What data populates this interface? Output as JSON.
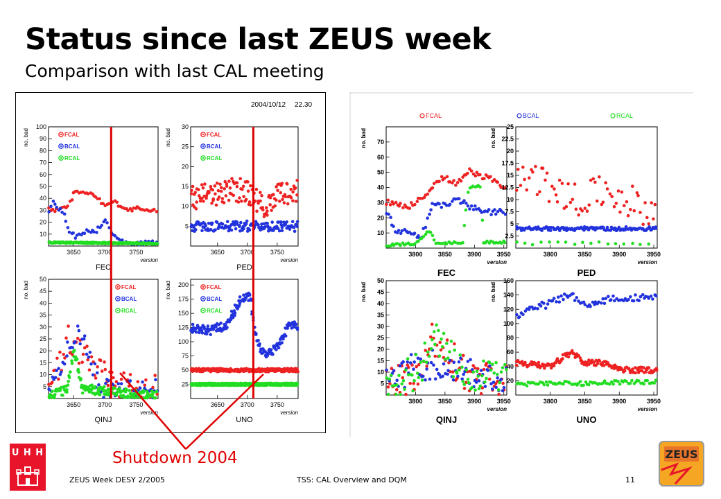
{
  "slide": {
    "title": "Status since last ZEUS week",
    "subtitle": "Comparison with last CAL meeting",
    "annotation": "Shutdown 2004",
    "annotation_color": "#e00000",
    "footer_left": "ZEUS Week DESY 2/2005",
    "footer_center": "TSS: CAL Overview and DQM",
    "page_number": "11",
    "logo_left_text": "U H H",
    "logo_right_text": "ZEUS"
  },
  "left_figure": {
    "timestamp": "2004/10/12",
    "time": "22.30",
    "shutdown_version": 3710
  },
  "chart_data": [
    {
      "panel": "left-FEC",
      "type": "scatter",
      "title": "FEC",
      "xlabel": "version",
      "ylabel": "no. bad",
      "xlim": [
        3610,
        3785
      ],
      "ylim": [
        0,
        100
      ],
      "xticks": [
        3650,
        3700,
        3750
      ],
      "yticks": [
        10,
        20,
        30,
        40,
        50,
        60,
        70,
        80,
        90,
        100
      ],
      "legend": [
        "FCAL",
        "BCAL",
        "RCAL"
      ],
      "series": [
        {
          "name": "FCAL",
          "color": "#ee2222",
          "profile": [
            [
              3610,
              31
            ],
            [
              3622,
              30
            ],
            [
              3640,
              32
            ],
            [
              3652,
              46
            ],
            [
              3670,
              45
            ],
            [
              3690,
              40
            ],
            [
              3700,
              33
            ],
            [
              3715,
              37
            ],
            [
              3725,
              33
            ],
            [
              3740,
              30
            ],
            [
              3752,
              32
            ],
            [
              3768,
              30
            ],
            [
              3785,
              29
            ]
          ],
          "jitter": 1.5,
          "spread": 1,
          "dx": 3
        },
        {
          "name": "BCAL",
          "color": "#2233dd",
          "profile": [
            [
              3610,
              26
            ],
            [
              3618,
              38
            ],
            [
              3625,
              32
            ],
            [
              3635,
              27
            ],
            [
              3645,
              10
            ],
            [
              3655,
              8
            ],
            [
              3665,
              12
            ],
            [
              3685,
              12
            ],
            [
              3700,
              23
            ],
            [
              3710,
              12
            ],
            [
              3730,
              3
            ],
            [
              3760,
              3
            ],
            [
              3785,
              3
            ]
          ],
          "jitter": 2,
          "spread": 1,
          "dx": 3
        },
        {
          "name": "RCAL",
          "color": "#22dd22",
          "profile": [
            [
              3610,
              3
            ],
            [
              3785,
              2
            ]
          ],
          "jitter": 0.6,
          "spread": 2,
          "dx": 1.5
        }
      ]
    },
    {
      "panel": "left-PED",
      "type": "scatter",
      "title": "PED",
      "xlabel": "version",
      "ylabel": "no. bad",
      "xlim": [
        3605,
        3785
      ],
      "ylim": [
        0,
        30
      ],
      "xticks": [
        3650,
        3700,
        3750
      ],
      "yticks": [
        5,
        10,
        15,
        20,
        25,
        30
      ],
      "legend": [
        "FCAL",
        "BCAL",
        "RCAL"
      ],
      "series": [
        {
          "name": "FCAL",
          "color": "#ee2222",
          "profile": [
            [
              3605,
              12
            ],
            [
              3640,
              13
            ],
            [
              3670,
              14
            ],
            [
              3700,
              14
            ],
            [
              3712,
              12
            ],
            [
              3730,
              10
            ],
            [
              3750,
              13
            ],
            [
              3785,
              14
            ]
          ],
          "jitter": 3,
          "spread": 2,
          "dx": 2.5
        },
        {
          "name": "BCAL",
          "color": "#2233dd",
          "profile": [
            [
              3605,
              5
            ],
            [
              3785,
              5
            ]
          ],
          "jitter": 1.3,
          "spread": 2,
          "dx": 2.5
        },
        {
          "name": "RCAL",
          "color": "#22dd22",
          "profile": [],
          "jitter": 0,
          "spread": 1,
          "dx": 3
        }
      ]
    },
    {
      "panel": "left-QINJ",
      "type": "scatter",
      "title": "QINJ",
      "xlabel": "version",
      "ylabel": "no. bad",
      "xlim": [
        3610,
        3785
      ],
      "ylim": [
        0,
        50
      ],
      "xticks": [
        3650,
        3700,
        3750
      ],
      "yticks": [
        5,
        10,
        15,
        20,
        25,
        30,
        35,
        40,
        45,
        50
      ],
      "legend": [
        "FCAL",
        "BCAL",
        "RCAL"
      ],
      "series": [
        {
          "name": "FCAL",
          "color": "#ee2222",
          "profile": [
            [
              3610,
              5
            ],
            [
              3625,
              12
            ],
            [
              3640,
              25
            ],
            [
              3655,
              20
            ],
            [
              3675,
              15
            ],
            [
              3695,
              10
            ],
            [
              3720,
              6
            ],
            [
              3750,
              5
            ],
            [
              3785,
              4
            ]
          ],
          "jitter": 6,
          "spread": 1,
          "dx": 2.5
        },
        {
          "name": "BCAL",
          "color": "#2233dd",
          "profile": [
            [
              3610,
              4
            ],
            [
              3625,
              8
            ],
            [
              3645,
              25
            ],
            [
              3665,
              27
            ],
            [
              3680,
              12
            ],
            [
              3700,
              4
            ],
            [
              3740,
              4
            ],
            [
              3785,
              3
            ]
          ],
          "jitter": 5,
          "spread": 1,
          "dx": 2.5
        },
        {
          "name": "RCAL",
          "color": "#22dd22",
          "profile": [
            [
              3610,
              1
            ],
            [
              3640,
              4
            ],
            [
              3650,
              20
            ],
            [
              3665,
              4
            ],
            [
              3785,
              1
            ]
          ],
          "jitter": 2,
          "spread": 2,
          "dx": 2
        }
      ]
    },
    {
      "panel": "left-UNO",
      "type": "scatter",
      "title": "UNO",
      "xlabel": "version",
      "ylabel": "no. bad",
      "xlim": [
        3605,
        3785
      ],
      "ylim": [
        0,
        210
      ],
      "xticks": [
        3650,
        3700,
        3750
      ],
      "yticks": [
        25,
        50,
        75,
        100,
        125,
        150,
        175,
        200
      ],
      "legend": [
        "FCAL",
        "BCAL",
        "RCAL"
      ],
      "series": [
        {
          "name": "FCAL",
          "color": "#ee2222",
          "profile": [
            [
              3605,
              50
            ],
            [
              3785,
              50
            ]
          ],
          "jitter": 3,
          "spread": 3,
          "dx": 2
        },
        {
          "name": "BCAL",
          "color": "#2233dd",
          "profile": [
            [
              3605,
              125
            ],
            [
              3640,
              120
            ],
            [
              3665,
              130
            ],
            [
              3690,
              175
            ],
            [
              3705,
              180
            ],
            [
              3715,
              100
            ],
            [
              3730,
              75
            ],
            [
              3750,
              90
            ],
            [
              3770,
              130
            ],
            [
              3785,
              125
            ]
          ],
          "jitter": 8,
          "spread": 2,
          "dx": 2
        },
        {
          "name": "RCAL",
          "color": "#22dd22",
          "profile": [
            [
              3605,
              25
            ],
            [
              3785,
              25
            ]
          ],
          "jitter": 2,
          "spread": 4,
          "dx": 1.5
        }
      ]
    },
    {
      "panel": "right-FEC",
      "type": "scatter",
      "title": "FEC",
      "xlabel": "version",
      "ylabel": "no. bad",
      "xlim": [
        3750,
        3955
      ],
      "ylim": [
        0,
        80
      ],
      "xticks": [
        3800,
        3850,
        3900,
        3950
      ],
      "yticks": [
        10,
        20,
        30,
        40,
        50,
        60,
        70
      ],
      "legend": [
        "FCAL",
        "BCAL",
        "RCAL"
      ],
      "series": [
        {
          "name": "FCAL",
          "color": "#ee2222",
          "profile": [
            [
              3750,
              30
            ],
            [
              3790,
              28
            ],
            [
              3810,
              33
            ],
            [
              3830,
              40
            ],
            [
              3845,
              47
            ],
            [
              3870,
              43
            ],
            [
              3890,
              51
            ],
            [
              3910,
              48
            ],
            [
              3930,
              45
            ],
            [
              3955,
              40
            ]
          ],
          "jitter": 2,
          "spread": 1,
          "dx": 3
        },
        {
          "name": "BCAL",
          "color": "#2233dd",
          "profile": [
            [
              3750,
              25
            ],
            [
              3765,
              12
            ],
            [
              3790,
              10
            ],
            [
              3810,
              7
            ],
            [
              3830,
              30
            ],
            [
              3850,
              28
            ],
            [
              3870,
              33
            ],
            [
              3890,
              28
            ],
            [
              3910,
              24
            ],
            [
              3955,
              24
            ]
          ],
          "jitter": 2,
          "spread": 1,
          "dx": 3
        },
        {
          "name": "RCAL",
          "color": "#22dd22",
          "profile": [
            [
              3750,
              2
            ],
            [
              3800,
              3
            ],
            [
              3825,
              12
            ],
            [
              3835,
              3
            ],
            [
              3880,
              4
            ],
            [
              3890,
              40
            ],
            [
              3910,
              41
            ],
            [
              3915,
              4
            ],
            [
              3955,
              4
            ]
          ],
          "jitter": 0.8,
          "spread": 1,
          "dx": 3
        }
      ]
    },
    {
      "panel": "right-PED",
      "type": "scatter",
      "title": "PED",
      "xlabel": "version",
      "ylabel": "no. bad",
      "xlim": [
        3750,
        3955
      ],
      "ylim": [
        0,
        25
      ],
      "xticks": [
        3800,
        3850,
        3900,
        3950
      ],
      "yticks": [
        2.5,
        5,
        7.5,
        10,
        12.5,
        15,
        17.5,
        20,
        22.5,
        25
      ],
      "legend": [
        "FCAL",
        "BCAL",
        "RCAL"
      ],
      "series": [
        {
          "name": "FCAL",
          "color": "#ee2222",
          "profile": [
            [
              3750,
              15
            ],
            [
              3790,
              13
            ],
            [
              3820,
              11
            ],
            [
              3850,
              10
            ],
            [
              3880,
              12
            ],
            [
              3910,
              10
            ],
            [
              3940,
              8
            ],
            [
              3955,
              7
            ]
          ],
          "jitter": 3.5,
          "spread": 1,
          "dx": 3
        },
        {
          "name": "BCAL",
          "color": "#2233dd",
          "profile": [
            [
              3750,
              4
            ],
            [
              3955,
              4
            ]
          ],
          "jitter": 0.4,
          "spread": 1,
          "dx": 1.5
        },
        {
          "name": "RCAL",
          "color": "#22dd22",
          "profile": [
            [
              3750,
              1
            ],
            [
              3955,
              1
            ]
          ],
          "jitter": 0.3,
          "spread": 1,
          "dx": 12
        }
      ]
    },
    {
      "panel": "right-QINJ",
      "type": "scatter",
      "title": "QINJ",
      "xlabel": "version",
      "ylabel": "no. bad",
      "xlim": [
        3750,
        3955
      ],
      "ylim": [
        0,
        50
      ],
      "xticks": [
        3800,
        3850,
        3900,
        3950
      ],
      "yticks": [
        5,
        10,
        15,
        20,
        25,
        30,
        35,
        40,
        45,
        50
      ],
      "legend": [
        "FCAL",
        "BCAL",
        "RCAL"
      ],
      "series": [
        {
          "name": "FCAL",
          "color": "#ee2222",
          "profile": [
            [
              3750,
              4
            ],
            [
              3800,
              8
            ],
            [
              3830,
              25
            ],
            [
              3850,
              20
            ],
            [
              3880,
              10
            ],
            [
              3955,
              5
            ]
          ],
          "jitter": 8,
          "spread": 1,
          "dx": 2.5
        },
        {
          "name": "BCAL",
          "color": "#2233dd",
          "profile": [
            [
              3750,
              6
            ],
            [
              3800,
              12
            ],
            [
              3850,
              15
            ],
            [
              3880,
              10
            ],
            [
              3955,
              5
            ]
          ],
          "jitter": 7,
          "spread": 1,
          "dx": 2.5
        },
        {
          "name": "RCAL",
          "color": "#22dd22",
          "profile": [
            [
              3750,
              3
            ],
            [
              3800,
              10
            ],
            [
              3840,
              25
            ],
            [
              3870,
              12
            ],
            [
              3955,
              6
            ]
          ],
          "jitter": 8,
          "spread": 1,
          "dx": 2.5
        }
      ]
    },
    {
      "panel": "right-UNO",
      "type": "scatter",
      "title": "UNO",
      "xlabel": "version",
      "ylabel": "no. bad",
      "xlim": [
        3750,
        3955
      ],
      "ylim": [
        0,
        160
      ],
      "xticks": [
        3800,
        3850,
        3900,
        3950
      ],
      "yticks": [
        20,
        40,
        60,
        80,
        100,
        120,
        140,
        160
      ],
      "legend": [
        "FCAL",
        "BCAL",
        "RCAL"
      ],
      "series": [
        {
          "name": "FCAL",
          "color": "#ee2222",
          "profile": [
            [
              3750,
              45
            ],
            [
              3800,
              40
            ],
            [
              3830,
              60
            ],
            [
              3850,
              45
            ],
            [
              3880,
              45
            ],
            [
              3900,
              35
            ],
            [
              3955,
              35
            ]
          ],
          "jitter": 4,
          "spread": 2,
          "dx": 2.5
        },
        {
          "name": "BCAL",
          "color": "#2233dd",
          "profile": [
            [
              3750,
              110
            ],
            [
              3770,
              120
            ],
            [
              3800,
              128
            ],
            [
              3830,
              140
            ],
            [
              3850,
              125
            ],
            [
              3870,
              132
            ],
            [
              3900,
              135
            ],
            [
              3955,
              138
            ]
          ],
          "jitter": 5,
          "spread": 1,
          "dx": 2.5
        },
        {
          "name": "RCAL",
          "color": "#22dd22",
          "profile": [
            [
              3750,
              15
            ],
            [
              3955,
              18
            ]
          ],
          "jitter": 3,
          "spread": 1,
          "dx": 2.5
        }
      ]
    }
  ]
}
